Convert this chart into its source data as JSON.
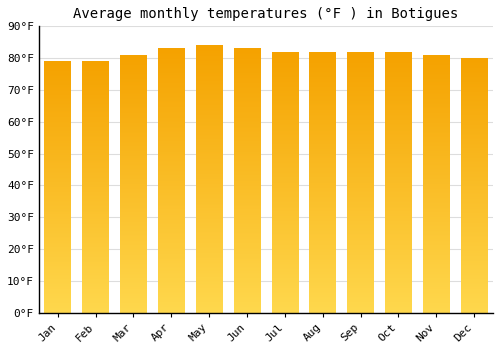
{
  "title": "Average monthly temperatures (°F ) in Botigues",
  "months": [
    "Jan",
    "Feb",
    "Mar",
    "Apr",
    "May",
    "Jun",
    "Jul",
    "Aug",
    "Sep",
    "Oct",
    "Nov",
    "Dec"
  ],
  "values": [
    79,
    79,
    81,
    83,
    84,
    83,
    82,
    82,
    82,
    82,
    81,
    80
  ],
  "bar_color_bottom": "#FFD84D",
  "bar_color_top": "#F5A200",
  "ylim": [
    0,
    90
  ],
  "yticks": [
    0,
    10,
    20,
    30,
    40,
    50,
    60,
    70,
    80,
    90
  ],
  "ytick_labels": [
    "0°F",
    "10°F",
    "20°F",
    "30°F",
    "40°F",
    "50°F",
    "60°F",
    "70°F",
    "80°F",
    "90°F"
  ],
  "background_color": "#FFFFFF",
  "grid_color": "#DDDDDD",
  "title_fontsize": 10,
  "tick_fontsize": 8,
  "bar_width": 0.7
}
